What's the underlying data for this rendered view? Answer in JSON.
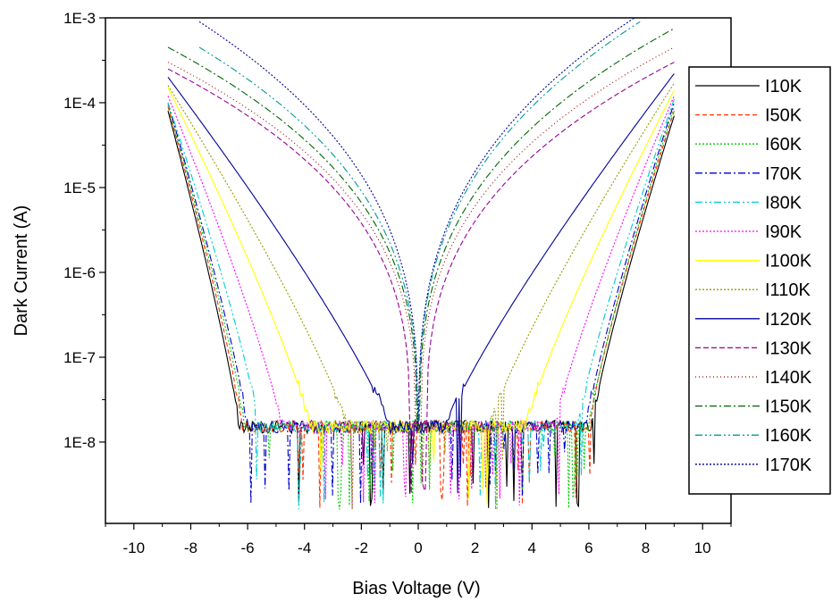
{
  "chart_data": {
    "type": "line",
    "title": "",
    "xlabel": "Bias Voltage (V)",
    "ylabel": "Dark Current (A)",
    "xlim": [
      -11,
      11
    ],
    "ylim": [
      1.1e-09,
      0.001
    ],
    "y_scale": "log",
    "x_ticks": [
      -10,
      -8,
      -6,
      -4,
      -2,
      0,
      2,
      4,
      6,
      8,
      10
    ],
    "x_tick_labels": [
      "-10",
      "-8",
      "-6",
      "-4",
      "-2",
      "0",
      "2",
      "4",
      "6",
      "8",
      "10"
    ],
    "y_ticks": [
      1e-08,
      1e-07,
      1e-06,
      1e-05,
      0.0001,
      0.001
    ],
    "y_tick_labels": [
      "1E-8",
      "1E-7",
      "1E-6",
      "1E-5",
      "1E-4",
      "1E-3"
    ],
    "grid": false,
    "legend_position": "right",
    "noise_floor": 1.5e-08,
    "series": [
      {
        "name": "I10K",
        "color": "#000000",
        "dash": "",
        "x_start": -8.8,
        "x_end": 9.0,
        "knee_neg": -6.3,
        "knee_pos": 6.1,
        "i_max_neg": 8e-05,
        "i_max_pos": 7e-05
      },
      {
        "name": "I50K",
        "color": "#ff3300",
        "dash": "5,3",
        "x_start": -8.8,
        "x_end": 9.0,
        "knee_neg": -6.2,
        "knee_pos": 6.0,
        "i_max_neg": 9e-05,
        "i_max_pos": 8e-05
      },
      {
        "name": "I60K",
        "color": "#00cc00",
        "dash": "2,2",
        "x_start": -8.8,
        "x_end": 9.0,
        "knee_neg": -6.1,
        "knee_pos": 6.0,
        "i_max_neg": 9.5e-05,
        "i_max_pos": 9e-05
      },
      {
        "name": "I70K",
        "color": "#0000cc",
        "dash": "8,3,2,3",
        "x_start": -8.8,
        "x_end": 9.0,
        "knee_neg": -6.0,
        "knee_pos": 5.9,
        "i_max_neg": 0.0001,
        "i_max_pos": 0.0001
      },
      {
        "name": "I80K",
        "color": "#00cccc",
        "dash": "8,3,2,3,2,3",
        "x_start": -8.8,
        "x_end": 9.0,
        "knee_neg": -5.6,
        "knee_pos": 5.6,
        "i_max_neg": 0.0001,
        "i_max_pos": 0.00011
      },
      {
        "name": "I90K",
        "color": "#ff00ff",
        "dash": "2,2",
        "x_start": -8.8,
        "x_end": 9.0,
        "knee_neg": -4.8,
        "knee_pos": 4.8,
        "i_max_neg": 0.00012,
        "i_max_pos": 0.00012
      },
      {
        "name": "I100K",
        "color": "#ffff00",
        "dash": "",
        "x_start": -8.8,
        "x_end": 9.0,
        "knee_neg": -3.8,
        "knee_pos": 3.8,
        "i_max_neg": 0.00015,
        "i_max_pos": 0.00014
      },
      {
        "name": "I110K",
        "color": "#999900",
        "dash": "2,2",
        "x_start": -8.8,
        "x_end": 9.0,
        "knee_neg": -2.5,
        "knee_pos": 2.5,
        "i_max_neg": 0.00016,
        "i_max_pos": 0.00017
      },
      {
        "name": "I120K",
        "color": "#000099",
        "dash": "",
        "x_start": -8.8,
        "x_end": 9.0,
        "knee_neg": -1.0,
        "knee_pos": 1.0,
        "i_max_neg": 0.0002,
        "i_max_pos": 0.00022
      },
      {
        "name": "I130K",
        "color": "#990099",
        "dash": "6,3",
        "x_start": -8.8,
        "x_end": 9.0,
        "knee_neg": -0.3,
        "knee_pos": 0.3,
        "i_max_neg": 0.00025,
        "i_max_pos": 0.0003
      },
      {
        "name": "I140K",
        "color": "#990000",
        "dash": "1,3",
        "x_start": -8.8,
        "x_end": 9.0,
        "knee_neg": -0.1,
        "knee_pos": 0.1,
        "i_max_neg": 0.0003,
        "i_max_pos": 0.00045
      },
      {
        "name": "I150K",
        "color": "#006600",
        "dash": "8,3,2,3",
        "x_start": -8.8,
        "x_end": 9.0,
        "knee_neg": -0.05,
        "knee_pos": 0.05,
        "i_max_neg": 0.00045,
        "i_max_pos": 0.00075
      },
      {
        "name": "I160K",
        "color": "#009999",
        "dash": "8,3,2,3,2,3",
        "x_start": -7.7,
        "x_end": 7.8,
        "knee_neg": -0.03,
        "knee_pos": 0.03,
        "i_max_neg": 0.00045,
        "i_max_pos": 0.0009
      },
      {
        "name": "I170K",
        "color": "#000099",
        "dash": "2,2",
        "x_start": -7.7,
        "x_end": 7.6,
        "knee_neg": -0.02,
        "knee_pos": 0.02,
        "i_max_neg": 0.0009,
        "i_max_pos": 0.001
      }
    ]
  }
}
